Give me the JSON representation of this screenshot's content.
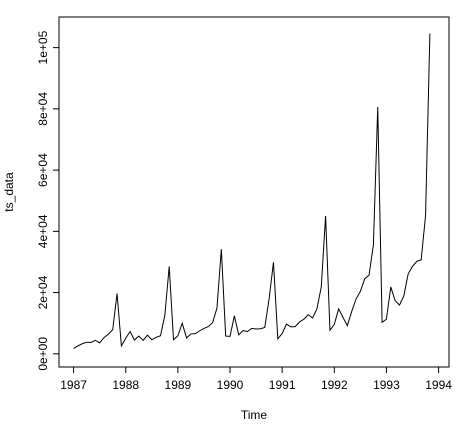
{
  "chart_data": {
    "type": "line",
    "title": "",
    "xlabel": "Time",
    "ylabel": "ts_data",
    "xlim": [
      1986.72,
      1994.2
    ],
    "ylim": [
      -4300,
      110000
    ],
    "x_ticks": [
      1987,
      1988,
      1989,
      1990,
      1991,
      1992,
      1993,
      1994
    ],
    "x_tick_labels": [
      "1987",
      "1988",
      "1989",
      "1990",
      "1991",
      "1992",
      "1993",
      "1994"
    ],
    "y_ticks": [
      0,
      20000,
      40000,
      60000,
      80000,
      100000
    ],
    "y_tick_labels": [
      "0e+00",
      "2e+04",
      "4e+04",
      "6e+04",
      "8e+04",
      "1e+05"
    ],
    "grid": false,
    "legend": "none",
    "line_color": "#000000",
    "series": [
      {
        "start": 1987,
        "frequency": 12,
        "values": [
          1700,
          2600,
          3300,
          3800,
          3700,
          4400,
          3600,
          5300,
          6400,
          7900,
          19700,
          2600,
          5100,
          7300,
          4500,
          5800,
          4400,
          6100,
          4600,
          5400,
          5900,
          12600,
          28500,
          4600,
          5900,
          10000,
          5200,
          6500,
          6600,
          7500,
          8300,
          8900,
          10200,
          15000,
          34200,
          5800,
          5700,
          12400,
          6200,
          7600,
          7300,
          8300,
          8100,
          8200,
          8600,
          18000,
          29900,
          4900,
          6600,
          9700,
          8800,
          8900,
          10400,
          11300,
          12800,
          11700,
          14700,
          21800,
          45000,
          7700,
          9600,
          14700,
          11900,
          9200,
          13800,
          17900,
          20400,
          24500,
          25700,
          35600,
          80600,
          10300,
          11300,
          21800,
          17400,
          15900,
          18900,
          26100,
          28600,
          30200,
          30700,
          45100,
          104600
        ]
      }
    ]
  }
}
